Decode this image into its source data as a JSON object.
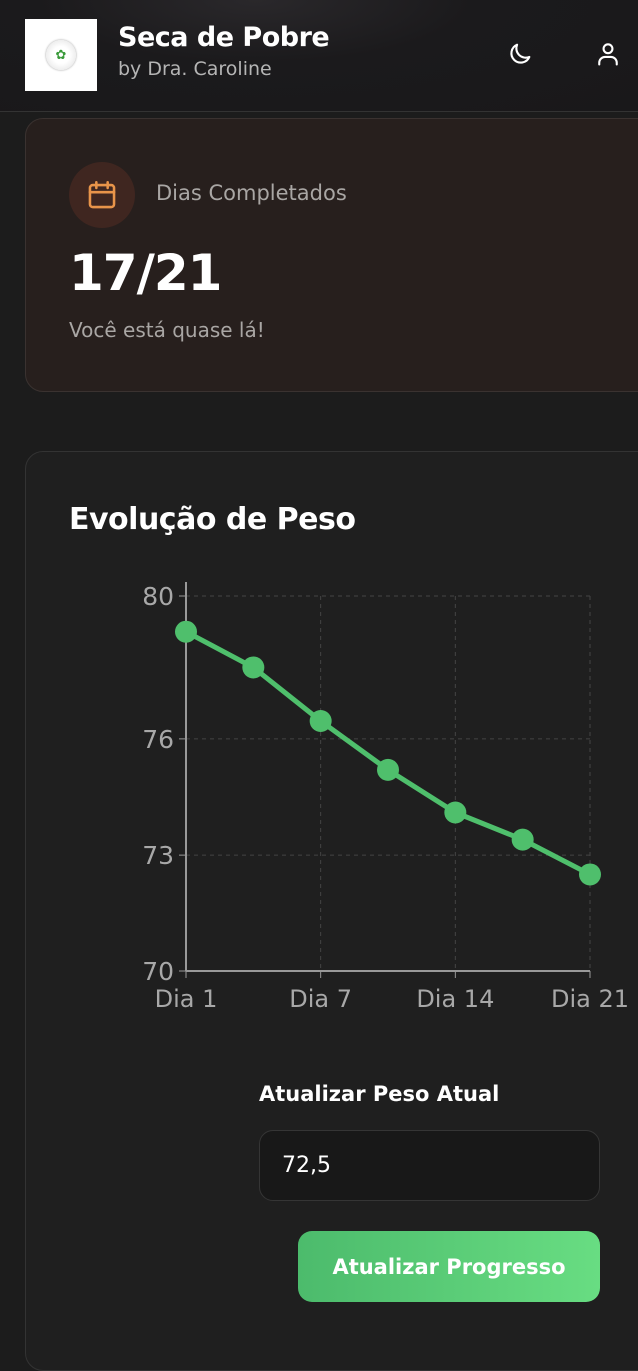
{
  "header": {
    "title": "Seca de Pobre",
    "subtitle": "by Dra. Caroline",
    "icons": [
      "moon-icon",
      "user-icon"
    ]
  },
  "progress_card": {
    "label": "Dias Completados",
    "value": "17/21",
    "completed": 17,
    "total": 21,
    "note": "Você está quase lá!",
    "icon": "calendar-icon",
    "accent": "#e8944a"
  },
  "weight_card": {
    "title": "Evolução de Peso",
    "input_label": "Atualizar Peso Atual",
    "input_value": "72,5",
    "button_label": "Atualizar Progresso"
  },
  "chart_data": {
    "type": "line",
    "title": "Evolução de Peso",
    "x_tick_labels": [
      "Dia 1",
      "Dia 7",
      "Dia 14",
      "Dia 21"
    ],
    "values": [
      79,
      78,
      76.5,
      75.2,
      74.1,
      73.4,
      72.5
    ],
    "y_ticks": [
      70,
      73,
      76,
      80
    ],
    "ylim": [
      70,
      80
    ],
    "grid": true,
    "color": "#4fbf6c"
  }
}
